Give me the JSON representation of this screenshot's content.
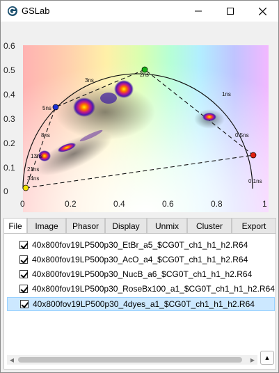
{
  "window": {
    "title": "GSLab"
  },
  "controls": {
    "minimize_icon": "minimize-icon",
    "maximize_icon": "maximize-icon",
    "close_icon": "close-icon"
  },
  "plot": {
    "x_ticks": [
      "0",
      "0.2",
      "0.4",
      "0.6",
      "0.8",
      "1"
    ],
    "y_ticks": [
      "0",
      "0.1",
      "0.2",
      "0.3",
      "0.4",
      "0.5",
      "0.6"
    ],
    "lifetime_labels": [
      "3ns",
      "2ns",
      "1ns",
      "5ns",
      "8ns",
      "13ns",
      "21ns",
      "34ns",
      "0.5ns",
      "0.1ns"
    ],
    "marker_colors": {
      "blue": "#1a2fd6",
      "green": "#18b418",
      "red": "#e02010",
      "yellow": "#f2e200"
    }
  },
  "tabs": [
    {
      "label": "File",
      "active": true
    },
    {
      "label": "Image",
      "active": false
    },
    {
      "label": "Phasor",
      "active": false
    },
    {
      "label": "Display",
      "active": false
    },
    {
      "label": "Unmix",
      "active": false
    },
    {
      "label": "Cluster",
      "active": false
    },
    {
      "label": "Export",
      "active": false
    }
  ],
  "files": [
    {
      "name": "40x800fov19LP500p30_EtBr_a5_$CG0T_ch1_h1_h2.R64",
      "checked": true,
      "selected": false
    },
    {
      "name": "40x800fov19LP500p30_AcO_a4_$CG0T_ch1_h1_h2.R64",
      "checked": true,
      "selected": false
    },
    {
      "name": "40x800fov19LP500p30_NucB_a6_$CG0T_ch1_h1_h2.R64",
      "checked": true,
      "selected": false
    },
    {
      "name": "40x800fov19LP500p30_RoseBx100_a1_$CG0T_ch1_h1_h2.R64",
      "checked": true,
      "selected": false
    },
    {
      "name": "40x800fov19LP500p30_4dyes_a1_$CG0T_ch1_h1_h2.R64",
      "checked": true,
      "selected": true
    }
  ]
}
